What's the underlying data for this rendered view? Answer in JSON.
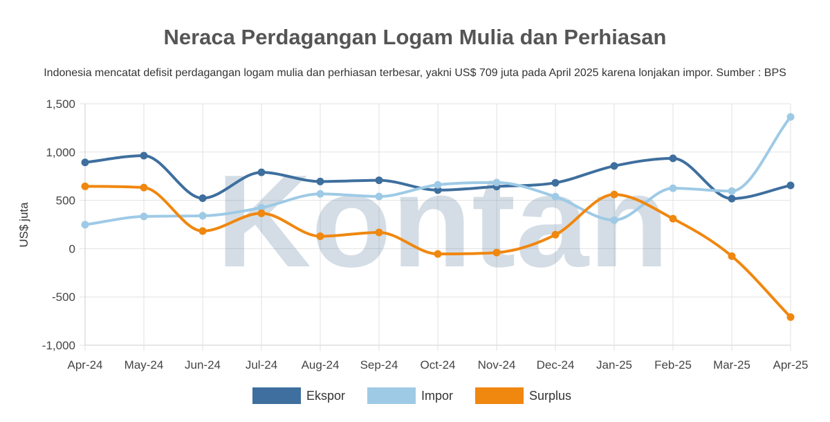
{
  "chart_data": {
    "type": "line",
    "title": "Neraca Perdagangan Logam Mulia dan Perhiasan",
    "subtitle": "Indonesia mencatat defisit perdagangan logam mulia dan perhiasan terbesar, yakni US$ 709 juta pada April 2025 karena lonjakan impor. Sumber : BPS",
    "ylabel": "US$ juta",
    "xlabel": "",
    "ylim": [
      -1000,
      1500
    ],
    "yticks": [
      1500,
      1000,
      500,
      0,
      -500,
      -1000
    ],
    "ytick_labels": [
      "1,500",
      "1,000",
      "500",
      "0",
      "-500",
      "-1,000"
    ],
    "categories": [
      "Apr-24",
      "May-24",
      "Jun-24",
      "Jul-24",
      "Aug-24",
      "Sep-24",
      "Oct-24",
      "Nov-24",
      "Dec-24",
      "Jan-25",
      "Feb-25",
      "Mar-25",
      "Apr-25"
    ],
    "series": [
      {
        "name": "Ekspor",
        "color": "#3e6f9e",
        "values": [
          893,
          963,
          522,
          790,
          695,
          708,
          606,
          643,
          682,
          856,
          935,
          518,
          655
        ]
      },
      {
        "name": "Impor",
        "color": "#9ecae6",
        "values": [
          248,
          333,
          340,
          424,
          567,
          540,
          661,
          684,
          538,
          295,
          625,
          596,
          1364
        ]
      },
      {
        "name": "Surplus",
        "color": "#f0870f",
        "values": [
          645,
          632,
          182,
          366,
          128,
          168,
          -55,
          -41,
          144,
          561,
          310,
          -78,
          -709
        ]
      }
    ],
    "grid": true,
    "legend_position": "bottom-center",
    "watermark": "Kontan"
  }
}
